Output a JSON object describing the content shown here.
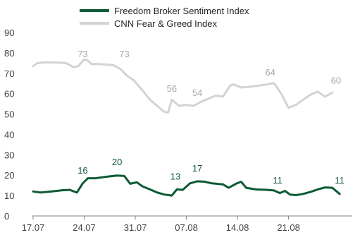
{
  "chart_data": {
    "type": "line",
    "y_ticks": [
      "0",
      "10",
      "20",
      "30",
      "40",
      "50",
      "60",
      "70",
      "80",
      "90"
    ],
    "ylim": [
      0,
      90
    ],
    "x_ticks": [
      {
        "label": "17.07",
        "day": 0
      },
      {
        "label": "24.07",
        "day": 7
      },
      {
        "label": "31.07",
        "day": 14
      },
      {
        "label": "07.08",
        "day": 21
      },
      {
        "label": "14.08",
        "day": 28
      },
      {
        "label": "21.08",
        "day": 35
      }
    ],
    "xlim_days": [
      0,
      44
    ],
    "legend_position": "top-center",
    "grid": false,
    "series": [
      {
        "name": "Freedom Broker Sentiment Index",
        "color": "#0d5a35",
        "values": [
          [
            0,
            12
          ],
          [
            1,
            11.5
          ],
          [
            2,
            11.8
          ],
          [
            3,
            12.2
          ],
          [
            4,
            12.6
          ],
          [
            5,
            12.8
          ],
          [
            6,
            11.5
          ],
          [
            6.8,
            16
          ],
          [
            7.5,
            18.5
          ],
          [
            8.5,
            18.5
          ],
          [
            10,
            19.2
          ],
          [
            11.5,
            19.8
          ],
          [
            12.5,
            19.6
          ],
          [
            13.3,
            15.8
          ],
          [
            14.2,
            16.5
          ],
          [
            15,
            14.5
          ],
          [
            16,
            13
          ],
          [
            17,
            11.5
          ],
          [
            18,
            10.5
          ],
          [
            19,
            10
          ],
          [
            19.7,
            13
          ],
          [
            20.5,
            12.8
          ],
          [
            21.5,
            16
          ],
          [
            22.5,
            17
          ],
          [
            23.5,
            16.8
          ],
          [
            24.5,
            16
          ],
          [
            26,
            15.5
          ],
          [
            26.8,
            13.8
          ],
          [
            27.8,
            15.8
          ],
          [
            28.5,
            16.8
          ],
          [
            29.2,
            13.8
          ],
          [
            30.5,
            13
          ],
          [
            32,
            12.8
          ],
          [
            33,
            12.5
          ],
          [
            33.8,
            11.2
          ],
          [
            34.5,
            12.3
          ],
          [
            35.2,
            10.5
          ],
          [
            36,
            10.2
          ],
          [
            37,
            10.8
          ],
          [
            38,
            11.8
          ],
          [
            39,
            13
          ],
          [
            40,
            14
          ],
          [
            41,
            13.8
          ],
          [
            42,
            10.8
          ]
        ]
      },
      {
        "name": "CNN Fear & Greed Index",
        "color": "#d3d3d3",
        "values": [
          [
            0,
            73.5
          ],
          [
            0.6,
            75
          ],
          [
            1.5,
            75.3
          ],
          [
            3,
            75.3
          ],
          [
            4.5,
            75
          ],
          [
            5.5,
            73
          ],
          [
            6.2,
            73.5
          ],
          [
            7,
            76.8
          ],
          [
            7.5,
            76.2
          ],
          [
            8,
            74.5
          ],
          [
            9,
            74.5
          ],
          [
            11,
            74
          ],
          [
            12,
            72
          ],
          [
            12.8,
            69
          ],
          [
            13.8,
            66.5
          ],
          [
            15,
            61.5
          ],
          [
            16,
            57
          ],
          [
            17,
            54
          ],
          [
            18,
            51
          ],
          [
            18.5,
            50.8
          ],
          [
            19,
            57
          ],
          [
            20,
            54
          ],
          [
            21,
            54.5
          ],
          [
            22,
            54
          ],
          [
            23,
            56
          ],
          [
            24,
            57.5
          ],
          [
            25,
            59
          ],
          [
            26,
            58.5
          ],
          [
            27,
            64
          ],
          [
            27.5,
            64.5
          ],
          [
            28.5,
            63
          ],
          [
            30,
            63.5
          ],
          [
            32,
            64.5
          ],
          [
            33,
            65.2
          ],
          [
            34,
            60
          ],
          [
            35,
            53
          ],
          [
            36,
            54.5
          ],
          [
            37,
            57
          ],
          [
            38,
            59.5
          ],
          [
            39,
            61
          ],
          [
            40,
            58.5
          ],
          [
            41,
            60.5
          ]
        ]
      }
    ],
    "data_labels": [
      {
        "series": 0,
        "day": 6.8,
        "value": 16,
        "text": "16"
      },
      {
        "series": 0,
        "day": 11.5,
        "value": 20,
        "text": "20"
      },
      {
        "series": 0,
        "day": 19.5,
        "value": 13,
        "text": "13"
      },
      {
        "series": 0,
        "day": 22.5,
        "value": 17,
        "text": "17"
      },
      {
        "series": 0,
        "day": 33.5,
        "value": 11,
        "text": "11"
      },
      {
        "series": 0,
        "day": 42,
        "value": 11,
        "text": "11"
      },
      {
        "series": 1,
        "day": 6.8,
        "value": 73,
        "text": "73"
      },
      {
        "series": 1,
        "day": 12.5,
        "value": 73,
        "text": "73"
      },
      {
        "series": 1,
        "day": 19,
        "value": 56,
        "text": "56"
      },
      {
        "series": 1,
        "day": 22.5,
        "value": 54,
        "text": "54"
      },
      {
        "series": 1,
        "day": 32.5,
        "value": 64,
        "text": "64"
      },
      {
        "series": 1,
        "day": 41.5,
        "value": 60,
        "text": "60"
      }
    ]
  }
}
